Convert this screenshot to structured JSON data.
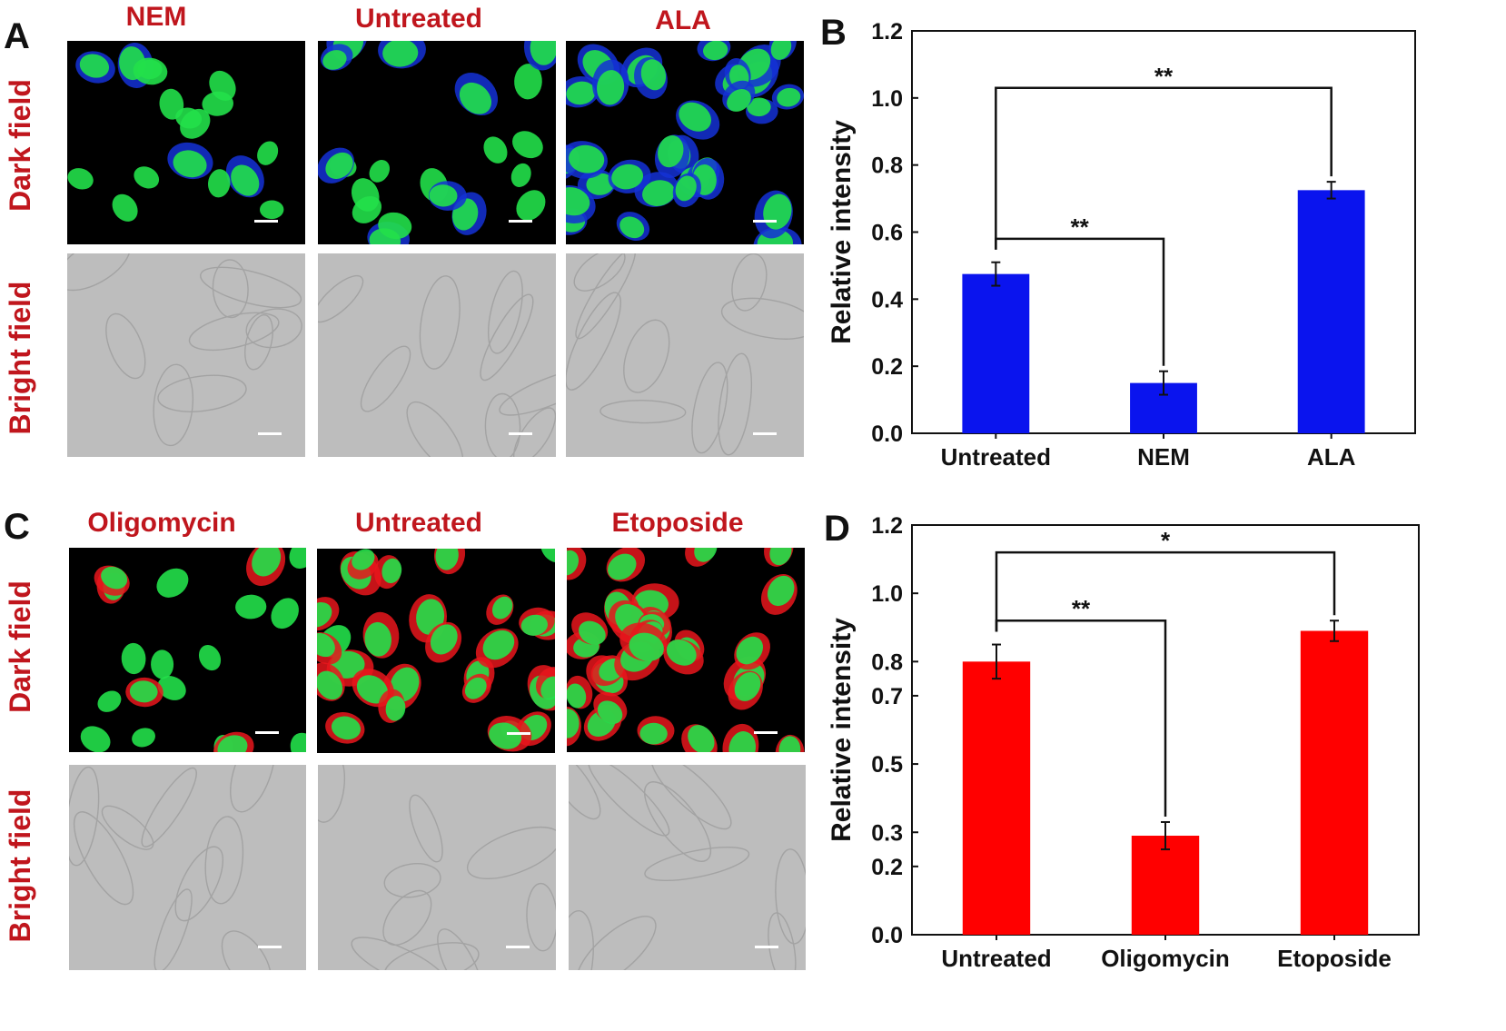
{
  "panels": {
    "A": {
      "letter": "A",
      "row_labels": [
        "Dark field",
        "Bright field"
      ],
      "columns": [
        "NEM",
        "Untreated",
        "ALA"
      ],
      "nucleus_color": "#22e04a",
      "stain_color": "#1431d6",
      "stain_levels": [
        0.15,
        0.35,
        0.95
      ]
    },
    "B": {
      "letter": "B"
    },
    "C": {
      "letter": "C",
      "row_labels": [
        "Dark field",
        "Bright field"
      ],
      "columns": [
        "Oligomycin",
        "Untreated",
        "Etoposide"
      ],
      "nucleus_color": "#22e04a",
      "stain_color": "#e8161c",
      "stain_levels": [
        0.2,
        0.8,
        0.9
      ]
    },
    "D": {
      "letter": "D"
    }
  },
  "chart_data": [
    {
      "type": "bar",
      "panel": "B",
      "categories": [
        "Untreated",
        "NEM",
        "ALA"
      ],
      "values": [
        0.475,
        0.15,
        0.725
      ],
      "errors": [
        0.035,
        0.035,
        0.025
      ],
      "bar_color": "#0a14ee",
      "ylabel": "Relative intensity",
      "ylim": [
        0,
        1.2
      ],
      "yticks": [
        "0.0",
        "0.2",
        "0.4",
        "0.6",
        "0.8",
        "1.0",
        "1.2"
      ],
      "significance": [
        {
          "from": 0,
          "to": 1,
          "label": "**"
        },
        {
          "from": 0,
          "to": 2,
          "label": "**"
        }
      ]
    },
    {
      "type": "bar",
      "panel": "D",
      "categories": [
        "Untreated",
        "Oligomycin",
        "Etoposide"
      ],
      "values": [
        0.8,
        0.29,
        0.89
      ],
      "errors": [
        0.05,
        0.04,
        0.03
      ],
      "bar_color": "#ff0000",
      "ylabel": "Relative intensity",
      "ylim": [
        0,
        1.2
      ],
      "yticks": [
        "0.0",
        "0.2",
        "0.3",
        "0.5",
        "0.7",
        "0.8",
        "1.0",
        "1.2"
      ],
      "significance": [
        {
          "from": 0,
          "to": 1,
          "label": "**"
        },
        {
          "from": 0,
          "to": 2,
          "label": "*"
        }
      ]
    }
  ]
}
